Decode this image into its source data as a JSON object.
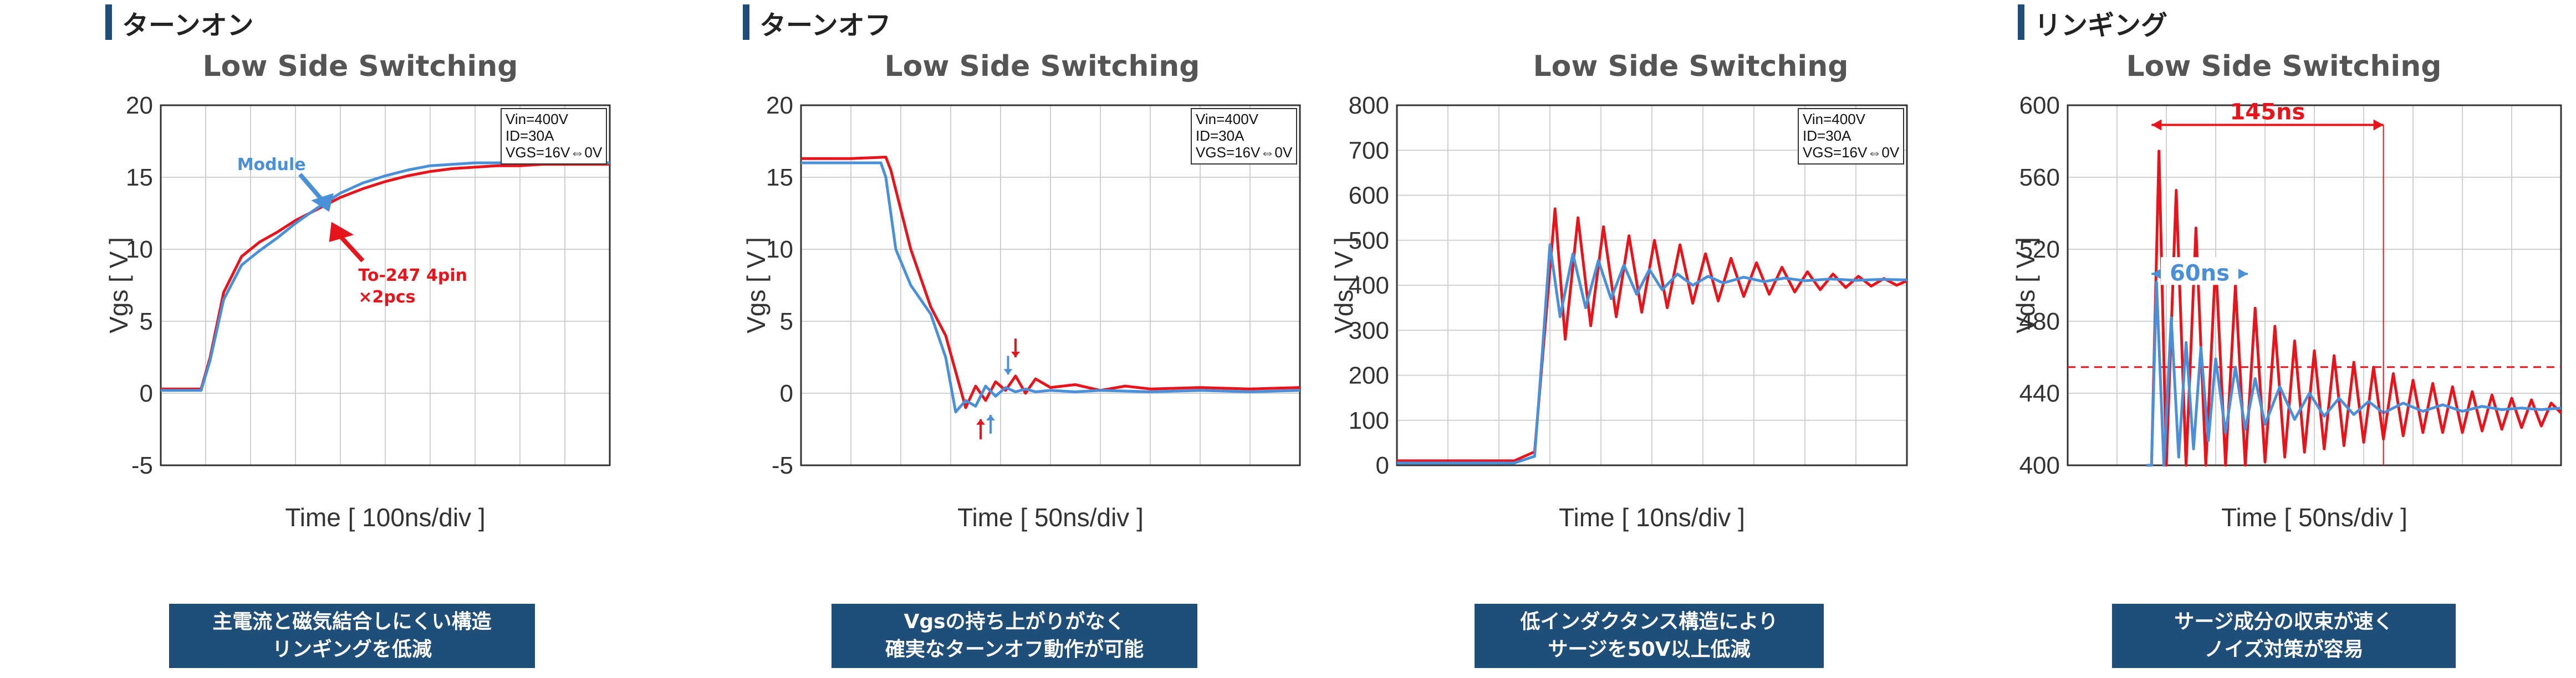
{
  "colors": {
    "red": "#e8141b",
    "blue": "#4a90d9",
    "navy": "#1f4e79",
    "grid": "#d0d0d0"
  },
  "chart_data": [
    {
      "type": "line",
      "section": "ターンオン",
      "title": "Low Side Switching",
      "xlabel": "Time [ 100ns/div ]",
      "ylabel": "Vgs [ V ]",
      "ylim": [
        -5,
        20
      ],
      "yticks": [
        "20",
        "15",
        "10",
        "5",
        "0",
        "-5"
      ],
      "xdivs": 10,
      "grid": true,
      "conditions": [
        "Vin=400V",
        "ID=30A",
        "VGS=16V⇔0V"
      ],
      "annotations": [
        {
          "text": "Module",
          "color": "blue"
        },
        {
          "text": "To-247 4pin",
          "color": "red"
        },
        {
          "text": "×2pcs",
          "color": "red"
        }
      ],
      "series": [
        {
          "name": "To-247 4pin ×2pcs",
          "color": "red",
          "x": [
            0,
            0.4,
            0.9,
            1.1,
            1.4,
            1.8,
            2.2,
            2.6,
            3.0,
            3.5,
            4.0,
            4.5,
            5.0,
            5.5,
            6.0,
            6.5,
            7.0,
            7.5,
            8.0,
            8.5,
            9.0,
            9.5,
            10
          ],
          "y": [
            0.3,
            0.3,
            0.3,
            2.5,
            7.0,
            9.5,
            10.5,
            11.2,
            12.0,
            12.8,
            13.6,
            14.2,
            14.7,
            15.1,
            15.4,
            15.6,
            15.7,
            15.8,
            15.8,
            15.9,
            15.9,
            15.9,
            15.9
          ]
        },
        {
          "name": "Module",
          "color": "blue",
          "x": [
            0,
            0.4,
            0.9,
            1.1,
            1.4,
            1.8,
            2.2,
            2.6,
            3.0,
            3.5,
            4.0,
            4.5,
            5.0,
            5.5,
            6.0,
            6.5,
            7.0,
            7.5,
            8.0,
            8.5,
            9.0,
            9.5,
            10
          ],
          "y": [
            0.2,
            0.2,
            0.2,
            2.3,
            6.5,
            8.9,
            9.9,
            10.8,
            11.8,
            12.9,
            13.9,
            14.6,
            15.1,
            15.5,
            15.8,
            15.9,
            16.0,
            16.0,
            16.0,
            16.0,
            16.0,
            16.0,
            16.0
          ]
        }
      ],
      "caption": [
        "主電流と磁気結合しにくい構造",
        "リンギングを低減"
      ]
    },
    {
      "type": "line",
      "section": "ターンオフ",
      "title": "Low Side Switching",
      "xlabel": "Time [ 50ns/div ]",
      "ylabel": "Vgs [ V ]",
      "ylim": [
        -5,
        20
      ],
      "yticks": [
        "20",
        "15",
        "10",
        "5",
        "0",
        "-5"
      ],
      "xdivs": 10,
      "grid": true,
      "conditions": [
        "Vin=400V",
        "ID=30A",
        "VGS=16V⇔0V"
      ],
      "series": [
        {
          "name": "To-247 4pin ×2pcs",
          "color": "red",
          "x": [
            0,
            1.0,
            1.7,
            1.8,
            2.2,
            2.6,
            2.9,
            3.1,
            3.3,
            3.5,
            3.7,
            3.9,
            4.1,
            4.3,
            4.5,
            4.7,
            5.0,
            5.5,
            6.0,
            6.5,
            7.0,
            8.0,
            9.0,
            10
          ],
          "y": [
            16.3,
            16.3,
            16.4,
            15.5,
            10.0,
            6.0,
            4.0,
            1.5,
            -1.0,
            0.5,
            -0.5,
            0.8,
            0.2,
            1.2,
            0.0,
            1.0,
            0.4,
            0.6,
            0.2,
            0.5,
            0.3,
            0.4,
            0.3,
            0.4
          ]
        },
        {
          "name": "Module",
          "color": "blue",
          "x": [
            0,
            1.0,
            1.6,
            1.7,
            1.9,
            2.2,
            2.6,
            2.9,
            3.1,
            3.3,
            3.5,
            3.7,
            3.9,
            4.1,
            4.3,
            4.5,
            4.7,
            5.0,
            5.5,
            6.0,
            7.0,
            8.0,
            9.0,
            10
          ],
          "y": [
            16.0,
            16.0,
            16.0,
            15.0,
            10.0,
            7.5,
            5.5,
            2.5,
            -1.3,
            -0.5,
            -0.9,
            0.5,
            -0.2,
            0.4,
            0.1,
            0.3,
            0.1,
            0.2,
            0.1,
            0.2,
            0.1,
            0.2,
            0.1,
            0.2
          ]
        }
      ],
      "caption": [
        "Vgsの持ち上がりがなく",
        "確実なターンオフ動作が可能"
      ]
    },
    {
      "type": "line",
      "section": "",
      "title": "Low Side Switching",
      "xlabel": "Time [ 10ns/div ]",
      "ylabel": "Vds [ V ]",
      "ylim": [
        0,
        800
      ],
      "yticks": [
        "800",
        "700",
        "600",
        "500",
        "400",
        "300",
        "200",
        "100",
        "0"
      ],
      "xdivs": 10,
      "grid": true,
      "conditions": [
        "Vin=400V",
        "ID=30A",
        "VGS=16V⇔0V"
      ],
      "series": [
        {
          "name": "To-247 4pin ×2pcs",
          "color": "red",
          "x": [
            0,
            2.3,
            2.7,
            2.9,
            3.1,
            3.3,
            3.55,
            3.8,
            4.05,
            4.3,
            4.55,
            4.8,
            5.05,
            5.3,
            5.55,
            5.8,
            6.05,
            6.3,
            6.55,
            6.8,
            7.05,
            7.3,
            7.55,
            7.8,
            8.05,
            8.3,
            8.55,
            8.8,
            9.05,
            9.3,
            9.55,
            9.8,
            10
          ],
          "y": [
            10,
            10,
            30,
            300,
            570,
            280,
            550,
            310,
            530,
            330,
            510,
            340,
            500,
            350,
            490,
            360,
            470,
            365,
            460,
            375,
            450,
            380,
            440,
            385,
            430,
            390,
            425,
            395,
            420,
            398,
            415,
            400,
            410
          ]
        },
        {
          "name": "Module",
          "color": "blue",
          "x": [
            0,
            2.3,
            2.7,
            2.85,
            3.0,
            3.2,
            3.45,
            3.7,
            3.95,
            4.2,
            4.45,
            4.7,
            4.95,
            5.2,
            5.5,
            5.8,
            6.1,
            6.4,
            6.8,
            7.2,
            7.6,
            8.0,
            8.5,
            9.0,
            9.5,
            10
          ],
          "y": [
            5,
            5,
            20,
            250,
            490,
            330,
            470,
            350,
            455,
            370,
            445,
            380,
            435,
            390,
            425,
            400,
            420,
            405,
            418,
            408,
            416,
            410,
            414,
            411,
            413,
            412
          ]
        }
      ],
      "caption": [
        "低インダクタンス構造により",
        "サージを50V以上低減"
      ]
    },
    {
      "type": "line",
      "section": "リンギング",
      "title": "Low Side Switching",
      "xlabel": "Time [ 50ns/div ]",
      "ylabel": "Vds [ V ]",
      "ylim": [
        380,
        600
      ],
      "yticks": [
        "600",
        "560",
        "520",
        "480",
        "440",
        "400"
      ],
      "xdivs": 10,
      "grid": true,
      "reference_line": 440,
      "annotations": [
        {
          "text": "145ns",
          "color": "red"
        },
        {
          "text": "60ns",
          "color": "blue"
        }
      ],
      "series": [
        {
          "name": "To-247 4pin ×2pcs",
          "color": "red",
          "x": [
            1.6,
            1.7,
            1.85,
            2.0,
            2.2,
            2.4,
            2.6,
            2.8,
            3.0,
            3.2,
            3.4,
            3.6,
            3.8,
            4.0,
            4.2,
            4.4,
            4.6,
            4.8,
            5.0,
            5.2,
            5.4,
            5.6,
            5.8,
            6.0,
            6.2,
            6.4,
            6.6,
            6.8,
            7.0,
            7.2,
            7.4,
            7.6,
            7.8,
            8.0,
            8.2,
            8.4,
            8.6,
            8.8,
            9.0,
            9.2,
            9.4,
            9.6,
            9.8,
            10
          ],
          "y": [
            380,
            380,
            572,
            380,
            548,
            380,
            525,
            380,
            505,
            380,
            490,
            380,
            476,
            382,
            465,
            385,
            456,
            388,
            450,
            390,
            447,
            392,
            443,
            394,
            440,
            396,
            436,
            398,
            432,
            400,
            430,
            400,
            428,
            400,
            425,
            401,
            423,
            402,
            421,
            403,
            420,
            404,
            418,
            412
          ]
        },
        {
          "name": "Module",
          "color": "blue",
          "x": [
            1.6,
            1.7,
            1.8,
            1.95,
            2.1,
            2.25,
            2.4,
            2.55,
            2.7,
            2.85,
            3.0,
            3.2,
            3.4,
            3.6,
            3.8,
            4.0,
            4.3,
            4.6,
            4.9,
            5.2,
            5.5,
            5.8,
            6.1,
            6.4,
            6.8,
            7.2,
            7.6,
            8.0,
            8.4,
            8.8,
            9.2,
            9.6,
            10
          ],
          "y": [
            380,
            380,
            492,
            380,
            470,
            385,
            455,
            390,
            452,
            395,
            445,
            400,
            440,
            402,
            433,
            405,
            428,
            408,
            424,
            410,
            421,
            411,
            419,
            412,
            418,
            413,
            417,
            413,
            416,
            414,
            415,
            414,
            415
          ]
        }
      ],
      "caption": [
        "サージ成分の収束が速く",
        "ノイズ対策が容易"
      ]
    }
  ]
}
